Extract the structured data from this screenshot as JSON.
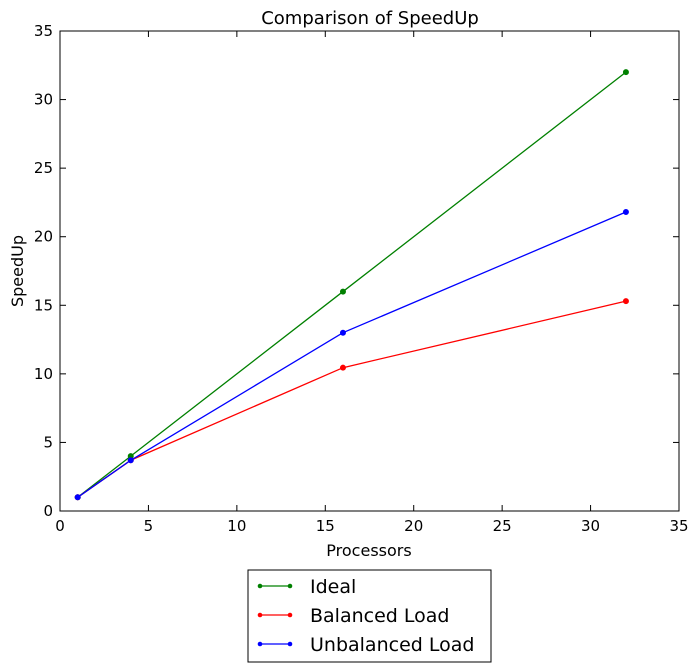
{
  "chart_data": {
    "type": "line",
    "title": "Comparison of SpeedUp",
    "xlabel": "Processors",
    "ylabel": "SpeedUp",
    "xlim": [
      0,
      35
    ],
    "ylim": [
      0,
      35
    ],
    "xticks": [
      0,
      5,
      10,
      15,
      20,
      25,
      30,
      35
    ],
    "yticks": [
      0,
      5,
      10,
      15,
      20,
      25,
      30,
      35
    ],
    "grid": false,
    "legend_position": "below plot, centered",
    "x": [
      1,
      4,
      16,
      32
    ],
    "series": [
      {
        "name": "Ideal",
        "color": "#008000",
        "values": [
          1,
          4,
          16,
          32
        ]
      },
      {
        "name": "Balanced Load",
        "color": "#ff0000",
        "values": [
          1,
          3.7,
          10.45,
          15.3
        ]
      },
      {
        "name": "Unbalanced Load",
        "color": "#0000ff",
        "values": [
          1,
          3.7,
          13,
          21.8
        ]
      }
    ]
  }
}
